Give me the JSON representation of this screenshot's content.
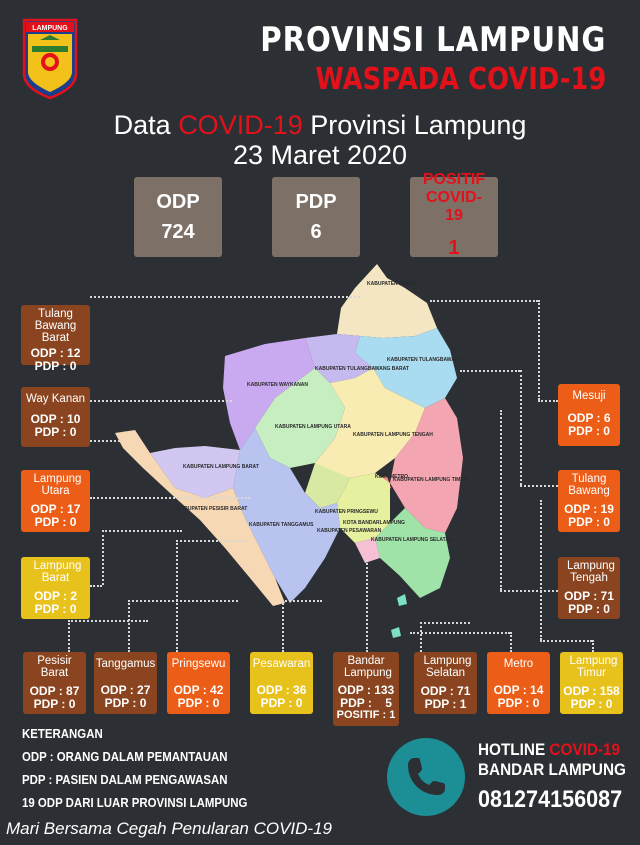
{
  "logo": {
    "text": "LAMPUNG"
  },
  "header": {
    "line1": "PROVINSI LAMPUNG",
    "line2": "WASPADA COVID-19"
  },
  "subtitle": {
    "prefix": "Data ",
    "highlight": "COVID-19",
    "suffix": " Provinsi Lampung",
    "date": "23 Maret 2020"
  },
  "stats": [
    {
      "label": "ODP",
      "value": "724"
    },
    {
      "label": "PDP",
      "value": "6"
    },
    {
      "label": "POSITIF COVID-19",
      "value": "1"
    }
  ],
  "regions": [
    {
      "name": "Tulang Bawang Barat",
      "odp": "ODP : 12",
      "pdp": "PDP :  0"
    },
    {
      "name": "Way Kanan",
      "odp": "ODP : 10",
      "pdp": "PDP :  0"
    },
    {
      "name": "Lampung Utara",
      "odp": "ODP : 17",
      "pdp": "PDP :  0"
    },
    {
      "name": "Lampung Barat",
      "odp": "ODP : 2",
      "pdp": "PDP :  0"
    },
    {
      "name": "Pesisir Barat",
      "odp": "ODP : 87",
      "pdp": "PDP :  0"
    },
    {
      "name": "Tanggamus",
      "odp": "ODP : 27",
      "pdp": "PDP :  0"
    },
    {
      "name": "Pringsewu",
      "odp": "ODP : 42",
      "pdp": "PDP :  0"
    },
    {
      "name": "Pesawaran",
      "odp": "ODP : 36",
      "pdp": "PDP :  0"
    },
    {
      "name": "Bandar Lampung",
      "odp": "ODP : 133",
      "pdp": "PDP :    5",
      "positif": "POSITIF : 1"
    },
    {
      "name": "Lampung Selatan",
      "odp": "ODP : 71",
      "pdp": "PDP :  1"
    },
    {
      "name": "Metro",
      "odp": "ODP : 14",
      "pdp": "PDP :  0"
    },
    {
      "name": "Lampung Timur",
      "odp": "ODP : 158",
      "pdp": "PDP :  0"
    },
    {
      "name": "Mesuji",
      "odp": "ODP : 6",
      "pdp": "PDP :  0"
    },
    {
      "name": "Tulang Bawang",
      "odp": "ODP : 19",
      "pdp": "PDP :  0"
    },
    {
      "name": "Lampung Tengah",
      "odp": "ODP : 71",
      "pdp": "PDP :  0"
    }
  ],
  "map_labels": {
    "mesuji": "KABUPATEN MESUJI",
    "tuba": "KABUPATEN TULANGBAWANG",
    "tubaba": "KABUPATEN TULANGBAWANG BARAT",
    "waykanan": "KABUPATEN WAYKANAN",
    "lampura": "KABUPATEN LAMPUNG UTARA",
    "lamteng": "KABUPATEN LAMPUNG TENGAH",
    "metro": "KOTA METRO",
    "lamtim": "KABUPATEN LAMPUNG TIMUR",
    "lambar": "KABUPATEN LAMPUNG BARAT",
    "pesibar": "KABUPATEN PESISIR BARAT",
    "tanggamus": "KABUPATEN TANGGAMUS",
    "pringsewu": "KABUPATEN PRINGSEWU",
    "bandar": "KOTA BANDARLAMPUNG",
    "pesawaran": "KABUPATEN PESAWARAN",
    "lamsel": "KABUPATEN LAMPUNG SELATAN"
  },
  "legend": {
    "title": "KETERANGAN",
    "odp": "ODP : ORANG DALAM PEMANTAUAN",
    "pdp": "PDP : PASIEN DALAM PENGAWASAN",
    "note": "19 ODP DARI LUAR PROVINSI LAMPUNG"
  },
  "hotline": {
    "prefix": "HOTLINE ",
    "highlight": "COVID-19",
    "city": "BANDAR LAMPUNG",
    "number": "081274156087"
  },
  "footer": "Mari Bersama Cegah Penularan COVID-19",
  "colors": {
    "background": "#2c3034",
    "accent": "#e2111a",
    "brown": "#8a4520",
    "orange": "#ec5d17",
    "yellow": "#e8c21c",
    "teal": "#1b8e96",
    "stat": "#7d7167"
  }
}
